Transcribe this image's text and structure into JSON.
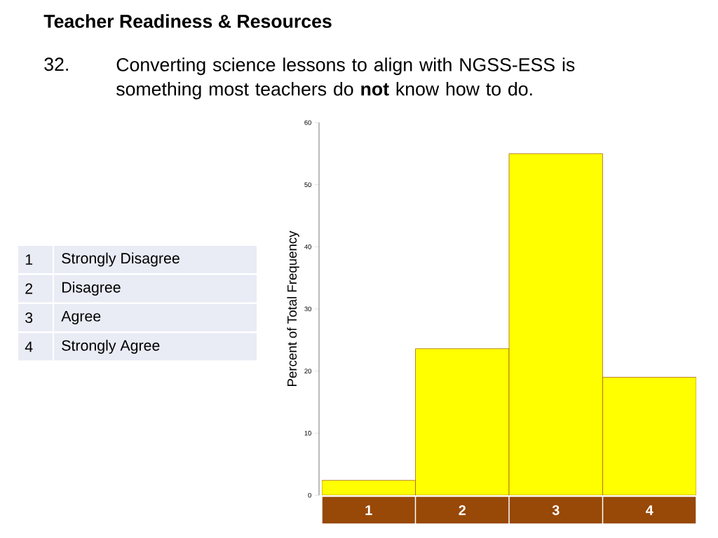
{
  "chart_data": {
    "type": "bar",
    "title": "Teacher Readiness & Resources",
    "subtitle": "Converting science lessons to align with NGSS-ESS is something most teachers do **not** know how to do.",
    "ylabel": "Percent of Total Frequency",
    "annotations": [
      "32.",
      "1",
      "Strongly Disagree",
      "2",
      "Disagree",
      "3",
      "Agree",
      "4",
      "Strongly Agree"
    ],
    "categories": [
      "1",
      "2",
      "3",
      "4"
    ],
    "values": [
      2.4,
      23.6,
      55,
      19
    ],
    "color": "#ffff00",
    "ylim": [
      0,
      60
    ],
    "yticks": [
      0,
      10,
      20,
      30,
      40,
      50,
      60
    ]
  }
}
